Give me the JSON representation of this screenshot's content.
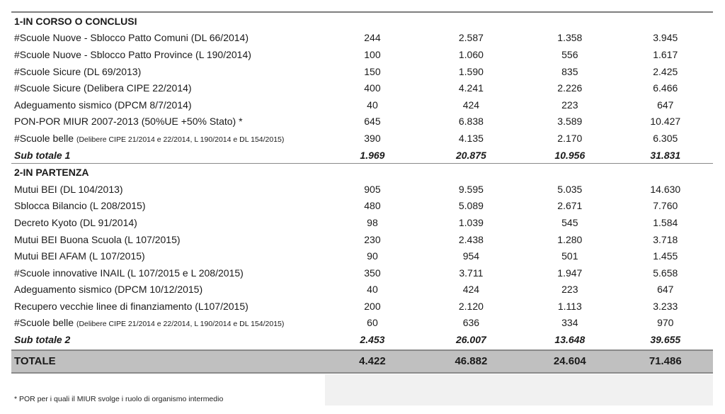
{
  "sections": [
    {
      "title": "1-IN CORSO O CONCLUSI",
      "rows": [
        {
          "label": "#Scuole Nuove - Sblocco Patto Comuni (DL 66/2014)",
          "note": "",
          "values": [
            "244",
            "2.587",
            "1.358",
            "3.945"
          ]
        },
        {
          "label": "#Scuole Nuove - Sblocco Patto Province (L 190/2014)",
          "note": "",
          "values": [
            "100",
            "1.060",
            "556",
            "1.617"
          ]
        },
        {
          "label": "#Scuole Sicure (DL 69/2013)",
          "note": "",
          "values": [
            "150",
            "1.590",
            "835",
            "2.425"
          ]
        },
        {
          "label": "#Scuole Sicure (Delibera CIPE 22/2014)",
          "note": "",
          "values": [
            "400",
            "4.241",
            "2.226",
            "6.466"
          ]
        },
        {
          "label": "Adeguamento sismico (DPCM 8/7/2014)",
          "note": "",
          "values": [
            "40",
            "424",
            "223",
            "647"
          ]
        },
        {
          "label": "PON-POR MIUR  2007-2013 (50%UE +50% Stato) *",
          "note": "",
          "values": [
            "645",
            "6.838",
            "3.589",
            "10.427"
          ]
        },
        {
          "label": "#Scuole belle ",
          "note": "(Delibere CIPE 21/2014 e 22/2014, L 190/2014 e DL 154/2015)",
          "values": [
            "390",
            "4.135",
            "2.170",
            "6.305"
          ]
        }
      ],
      "subtotal": {
        "label": "Sub totale 1",
        "values": [
          "1.969",
          "20.875",
          "10.956",
          "31.831"
        ]
      }
    },
    {
      "title": "2-IN PARTENZA",
      "rows": [
        {
          "label": "Mutui BEI (DL 104/2013)",
          "note": "",
          "values": [
            "905",
            "9.595",
            "5.035",
            "14.630"
          ]
        },
        {
          "label": "Sblocca Bilancio (L 208/2015)",
          "note": "",
          "values": [
            "480",
            "5.089",
            "2.671",
            "7.760"
          ]
        },
        {
          "label": "Decreto Kyoto (DL 91/2014)",
          "note": "",
          "values": [
            "98",
            "1.039",
            "545",
            "1.584"
          ]
        },
        {
          "label": "Mutui BEI Buona Scuola (L 107/2015)",
          "note": "",
          "values": [
            "230",
            "2.438",
            "1.280",
            "3.718"
          ]
        },
        {
          "label": "Mutui BEI AFAM (L 107/2015)",
          "note": "",
          "values": [
            "90",
            "954",
            "501",
            "1.455"
          ]
        },
        {
          "label": "#Scuole innovative INAIL (L 107/2015 e L 208/2015)",
          "note": "",
          "values": [
            "350",
            "3.711",
            "1.947",
            "5.658"
          ]
        },
        {
          "label": "Adeguamento sismico (DPCM 10/12/2015)",
          "note": "",
          "values": [
            "40",
            "424",
            "223",
            "647"
          ]
        },
        {
          "label": "Recupero vecchie linee di finanziamento (L107/2015)",
          "note": "",
          "values": [
            "200",
            "2.120",
            "1.113",
            "3.233"
          ]
        },
        {
          "label": "#Scuole belle ",
          "note": "(Delibere CIPE 21/2014 e 22/2014, L 190/2014 e DL 154/2015)",
          "values": [
            "60",
            "636",
            "334",
            "970"
          ]
        }
      ],
      "subtotal": {
        "label": "Sub totale 2",
        "values": [
          "2.453",
          "26.007",
          "13.648",
          "39.655"
        ]
      }
    }
  ],
  "total": {
    "label": "TOTALE",
    "values": [
      "4.422",
      "46.882",
      "24.604",
      "71.486"
    ]
  },
  "footnote": "*  POR per i quali il MIUR svolge i ruolo di organismo intermedio",
  "colors": {
    "total_bg": "#c0c0c0",
    "rule": "#7f7f7f",
    "box_bg": "#f1f1f1"
  }
}
